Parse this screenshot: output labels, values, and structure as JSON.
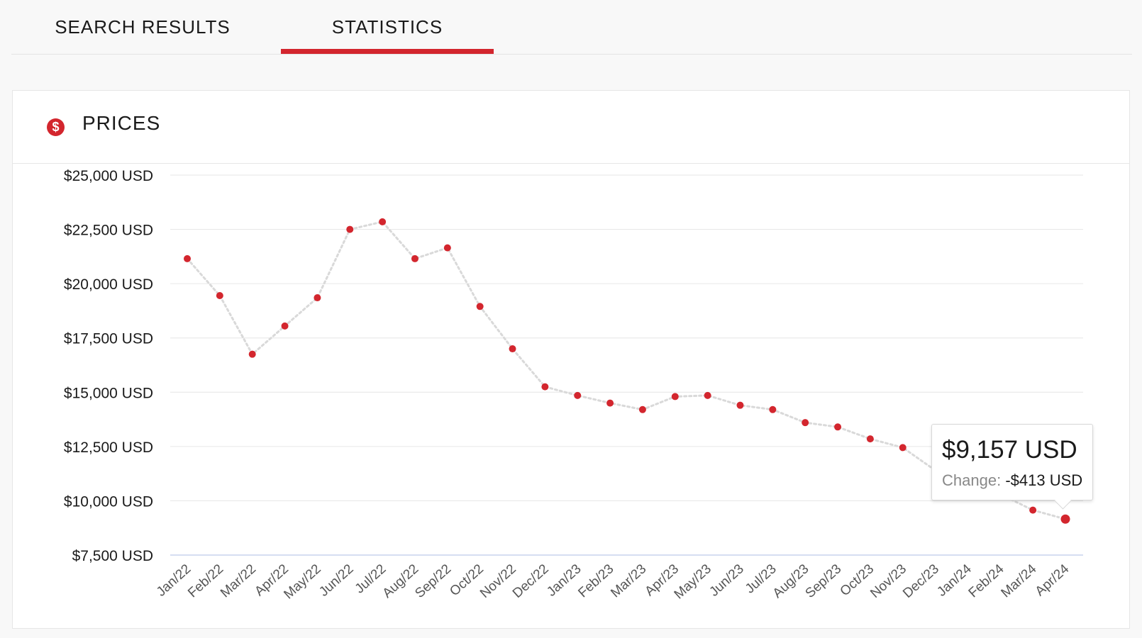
{
  "tabs": [
    {
      "label": "SEARCH RESULTS",
      "active": false
    },
    {
      "label": "STATISTICS",
      "active": true
    }
  ],
  "card": {
    "title": "PRICES",
    "icon": "dollar-circle-icon"
  },
  "colors": {
    "accent": "#d3262e",
    "line": "#d9d9d9",
    "grid": "#e6e6e6",
    "baseline": "#c9d4ee"
  },
  "tooltip": {
    "value": "$9,157 USD",
    "change_label": "Change:",
    "change_value": "-$413 USD"
  },
  "chart_data": {
    "type": "line",
    "title": "",
    "xlabel": "",
    "ylabel": "",
    "ylim": [
      7500,
      25000
    ],
    "yticks": [
      7500,
      10000,
      12500,
      15000,
      17500,
      20000,
      22500,
      25000
    ],
    "ytick_labels": [
      "$7,500 USD",
      "$10,000 USD",
      "$12,500 USD",
      "$15,000 USD",
      "$17,500 USD",
      "$20,000 USD",
      "$22,500 USD",
      "$25,000 USD"
    ],
    "grid": true,
    "categories": [
      "Jan/22",
      "Feb/22",
      "Mar/22",
      "Apr/22",
      "May/22",
      "Jun/22",
      "Jul/22",
      "Aug/22",
      "Sep/22",
      "Oct/22",
      "Nov/22",
      "Dec/22",
      "Jan/23",
      "Feb/23",
      "Mar/23",
      "Apr/23",
      "May/23",
      "Jun/23",
      "Jul/23",
      "Aug/23",
      "Sep/23",
      "Oct/23",
      "Nov/23",
      "Dec/23",
      "Jan/24",
      "Feb/24",
      "Mar/24",
      "Apr/24"
    ],
    "values": [
      21150,
      19450,
      16750,
      18050,
      19350,
      22500,
      22850,
      21150,
      21650,
      18950,
      17000,
      15250,
      14850,
      14500,
      14200,
      14800,
      14850,
      14400,
      14200,
      13600,
      13400,
      12850,
      12450,
      11400,
      10700,
      10300,
      9570,
      9157
    ],
    "highlight_index": 27
  }
}
